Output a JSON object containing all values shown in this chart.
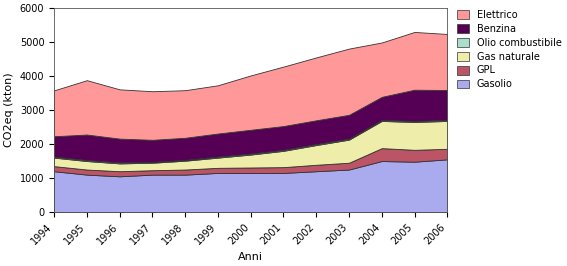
{
  "years": [
    1994,
    1995,
    1996,
    1997,
    1998,
    1999,
    2000,
    2001,
    2002,
    2003,
    2004,
    2005,
    2006
  ],
  "gasolio": [
    1200,
    1100,
    1050,
    1100,
    1100,
    1150,
    1150,
    1150,
    1200,
    1250,
    1500,
    1480,
    1550
  ],
  "gpl": [
    150,
    150,
    150,
    130,
    150,
    150,
    160,
    170,
    190,
    200,
    380,
    350,
    310
  ],
  "gas_naturale": [
    250,
    250,
    230,
    220,
    260,
    300,
    380,
    480,
    580,
    680,
    800,
    820,
    820
  ],
  "olio_combustibile": [
    30,
    30,
    30,
    25,
    25,
    30,
    30,
    30,
    30,
    30,
    30,
    30,
    30
  ],
  "benzina": [
    600,
    750,
    700,
    650,
    650,
    680,
    700,
    700,
    700,
    700,
    680,
    920,
    880
  ],
  "elettrico": [
    1350,
    1600,
    1450,
    1430,
    1400,
    1420,
    1600,
    1750,
    1850,
    1950,
    1600,
    1700,
    1650
  ],
  "colors": {
    "gasolio": "#aaaaee",
    "gpl": "#bb5566",
    "gas_naturale": "#eeeeaa",
    "olio_combustibile": "#aaddcc",
    "benzina": "#550055",
    "elettrico": "#ff9999"
  },
  "ylabel": "CO2eq (kton)",
  "xlabel": "Anni",
  "ylim": [
    0,
    6000
  ],
  "yticks": [
    0,
    1000,
    2000,
    3000,
    4000,
    5000,
    6000
  ],
  "legend_order": [
    "Elettrico",
    "Benzina",
    "Olio combustibile",
    "Gas naturale",
    "GPL",
    "Gasolio"
  ]
}
